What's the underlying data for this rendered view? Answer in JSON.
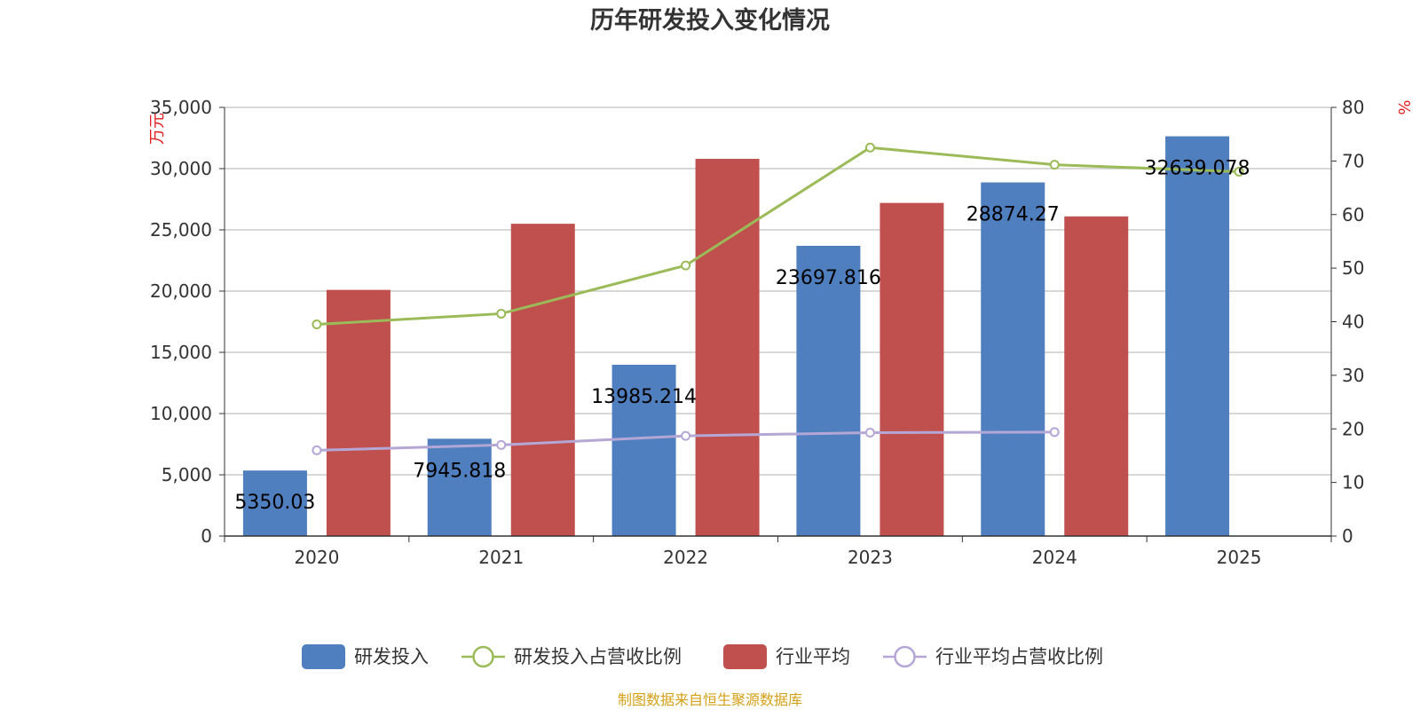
{
  "chart_data": {
    "type": "bar",
    "title": "历年研发投入变化情况",
    "categories": [
      "2020",
      "2021",
      "2022",
      "2023",
      "2024",
      "2025"
    ],
    "y_left": {
      "unit": "万元",
      "ylim": [
        0,
        35000
      ],
      "ticks": [
        "0",
        "5,000",
        "10,000",
        "15,000",
        "20,000",
        "25,000",
        "30,000",
        "35,000"
      ]
    },
    "y_right": {
      "unit": "%",
      "ylim": [
        0,
        80
      ],
      "ticks": [
        "0",
        "10",
        "20",
        "30",
        "40",
        "50",
        "60",
        "70",
        "80"
      ]
    },
    "series": [
      {
        "name": "研发投入",
        "type": "bar",
        "axis": "left",
        "color": "#4f7fbf",
        "values": [
          5350.03,
          7945.818,
          13985.214,
          23697.816,
          28874.27,
          32639.078
        ],
        "labels": [
          "5350.03",
          "7945.818",
          "13985.214",
          "23697.816",
          "28874.27",
          "32639.078"
        ]
      },
      {
        "name": "研发投入占营收比例",
        "type": "line",
        "axis": "right",
        "color": "#9bbb59",
        "values": [
          39.5,
          41.5,
          50.5,
          72.5,
          69.3,
          68.0
        ]
      },
      {
        "name": "行业平均",
        "type": "bar",
        "axis": "left",
        "color": "#c0504d",
        "values": [
          20100,
          25500,
          30800,
          27200,
          26100,
          null
        ]
      },
      {
        "name": "行业平均占营收比例",
        "type": "line",
        "axis": "right",
        "color": "#b4a7d6",
        "values": [
          16.0,
          17.0,
          18.7,
          19.3,
          19.4,
          null
        ]
      }
    ],
    "grid": true,
    "legend_position": "bottom"
  },
  "footer": {
    "source": "制图数据来自恒生聚源数据库"
  }
}
